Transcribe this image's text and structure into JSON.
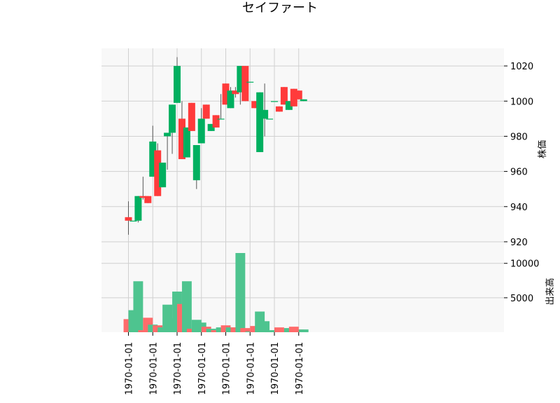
{
  "chart_data": {
    "type": "candlestick",
    "title": "セイファート",
    "colors": {
      "up": "#00b060",
      "down": "#ff3b3b",
      "volume_up": "#4ec48f",
      "volume_down": "#ff6b6b",
      "wick": "#555555",
      "plot_bg": "#f8f8f8",
      "grid": "#d0d0d0"
    },
    "grid": true,
    "price_panel": {
      "ylabel": "株価",
      "ylim": [
        916,
        1030
      ],
      "yticks": [
        920,
        940,
        960,
        980,
        1000,
        1020
      ],
      "tick_labels": [
        "920",
        "940",
        "960",
        "980",
        "1000",
        "1020"
      ]
    },
    "volume_panel": {
      "ylabel": "出来高",
      "ylim": [
        0,
        11500
      ],
      "yticks": [
        5000,
        10000
      ],
      "tick_labels": [
        "5000",
        "10000"
      ]
    },
    "x_tick_labels": [
      "1970-01-01",
      "1970-01-01",
      "1970-01-01",
      "1970-01-01",
      "1970-01-01",
      "1970-01-01",
      "1970-01-01",
      "1970-01-01"
    ],
    "x_tick_indices": [
      0,
      5,
      10,
      15,
      20,
      25,
      30,
      35
    ],
    "candles": [
      {
        "open": 934,
        "high": 943,
        "low": 924,
        "close": 932,
        "volume": 1900
      },
      {
        "open": 932,
        "high": 932,
        "low": 932,
        "close": 932,
        "volume": 3200
      },
      {
        "open": 932,
        "high": 946,
        "low": 931,
        "close": 946,
        "volume": 7400
      },
      {
        "open": 946,
        "high": 957,
        "low": 944,
        "close": 945,
        "volume": 300
      },
      {
        "open": 946,
        "high": 946,
        "low": 942,
        "close": 942,
        "volume": 2100
      },
      {
        "open": 957,
        "high": 986,
        "low": 957,
        "close": 977,
        "volume": 1100
      },
      {
        "open": 972,
        "high": 976,
        "low": 946,
        "close": 946,
        "volume": 1000
      },
      {
        "open": 951,
        "high": 965,
        "low": 951,
        "close": 965,
        "volume": 700
      },
      {
        "open": 980,
        "high": 981,
        "low": 961,
        "close": 982,
        "volume": 4000
      },
      {
        "open": 982,
        "high": 998,
        "low": 970,
        "close": 998,
        "volume": 2000
      },
      {
        "open": 999,
        "high": 1025,
        "low": 999,
        "close": 1020,
        "volume": 5900
      },
      {
        "open": 990,
        "high": 1000,
        "low": 967,
        "close": 967,
        "volume": 4100
      },
      {
        "open": 968,
        "high": 985,
        "low": 968,
        "close": 985,
        "volume": 7400
      },
      {
        "open": 999,
        "high": 999,
        "low": 983,
        "close": 983,
        "volume": 500
      },
      {
        "open": 955,
        "high": 975,
        "low": 950,
        "close": 975,
        "volume": 1800
      },
      {
        "open": 976,
        "high": 996,
        "low": 976,
        "close": 990,
        "volume": 1400
      },
      {
        "open": 998,
        "high": 998,
        "low": 990,
        "close": 990,
        "volume": 800
      },
      {
        "open": 983,
        "high": 987,
        "low": 983,
        "close": 987,
        "volume": 500
      },
      {
        "open": 992,
        "high": 992,
        "low": 985,
        "close": 985,
        "volume": 300
      },
      {
        "open": 990,
        "high": 1004,
        "low": 990,
        "close": 990,
        "volume": 700
      },
      {
        "open": 1010,
        "high": 1010,
        "low": 998,
        "close": 998,
        "volume": 1000
      },
      {
        "open": 996,
        "high": 1008,
        "low": 996,
        "close": 1006,
        "volume": 700
      },
      {
        "open": 1006,
        "high": 1008,
        "low": 1002,
        "close": 1004,
        "volume": 700
      },
      {
        "open": 1005,
        "high": 1020,
        "low": 998,
        "close": 1020,
        "volume": 11500
      },
      {
        "open": 1020,
        "high": 1020,
        "low": 1000,
        "close": 1000,
        "volume": 600
      },
      {
        "open": 1011,
        "high": 1011,
        "low": 1011,
        "close": 1011,
        "volume": 100
      },
      {
        "open": 1000,
        "high": 1000,
        "low": 996,
        "close": 996,
        "volume": 900
      },
      {
        "open": 971,
        "high": 1005,
        "low": 971,
        "close": 1005,
        "volume": 3000
      },
      {
        "open": 990,
        "high": 1010,
        "low": 980,
        "close": 995,
        "volume": 1600
      },
      {
        "open": 990,
        "high": 990,
        "low": 990,
        "close": 990,
        "volume": 100
      },
      {
        "open": 1000,
        "high": 1000,
        "low": 1000,
        "close": 1000,
        "volume": 300
      },
      {
        "open": 997,
        "high": 997,
        "low": 994,
        "close": 994,
        "volume": 700
      },
      {
        "open": 1008,
        "high": 1008,
        "low": 998,
        "close": 998,
        "volume": 400
      },
      {
        "open": 995,
        "high": 1000,
        "low": 995,
        "close": 1000,
        "volume": 600
      },
      {
        "open": 1007,
        "high": 1007,
        "low": 997,
        "close": 997,
        "volume": 800
      },
      {
        "open": 1006,
        "high": 1006,
        "low": 1001,
        "close": 1001,
        "volume": 400
      },
      {
        "open": 1000,
        "high": 1001,
        "low": 1000,
        "close": 1001,
        "volume": 400
      }
    ]
  }
}
